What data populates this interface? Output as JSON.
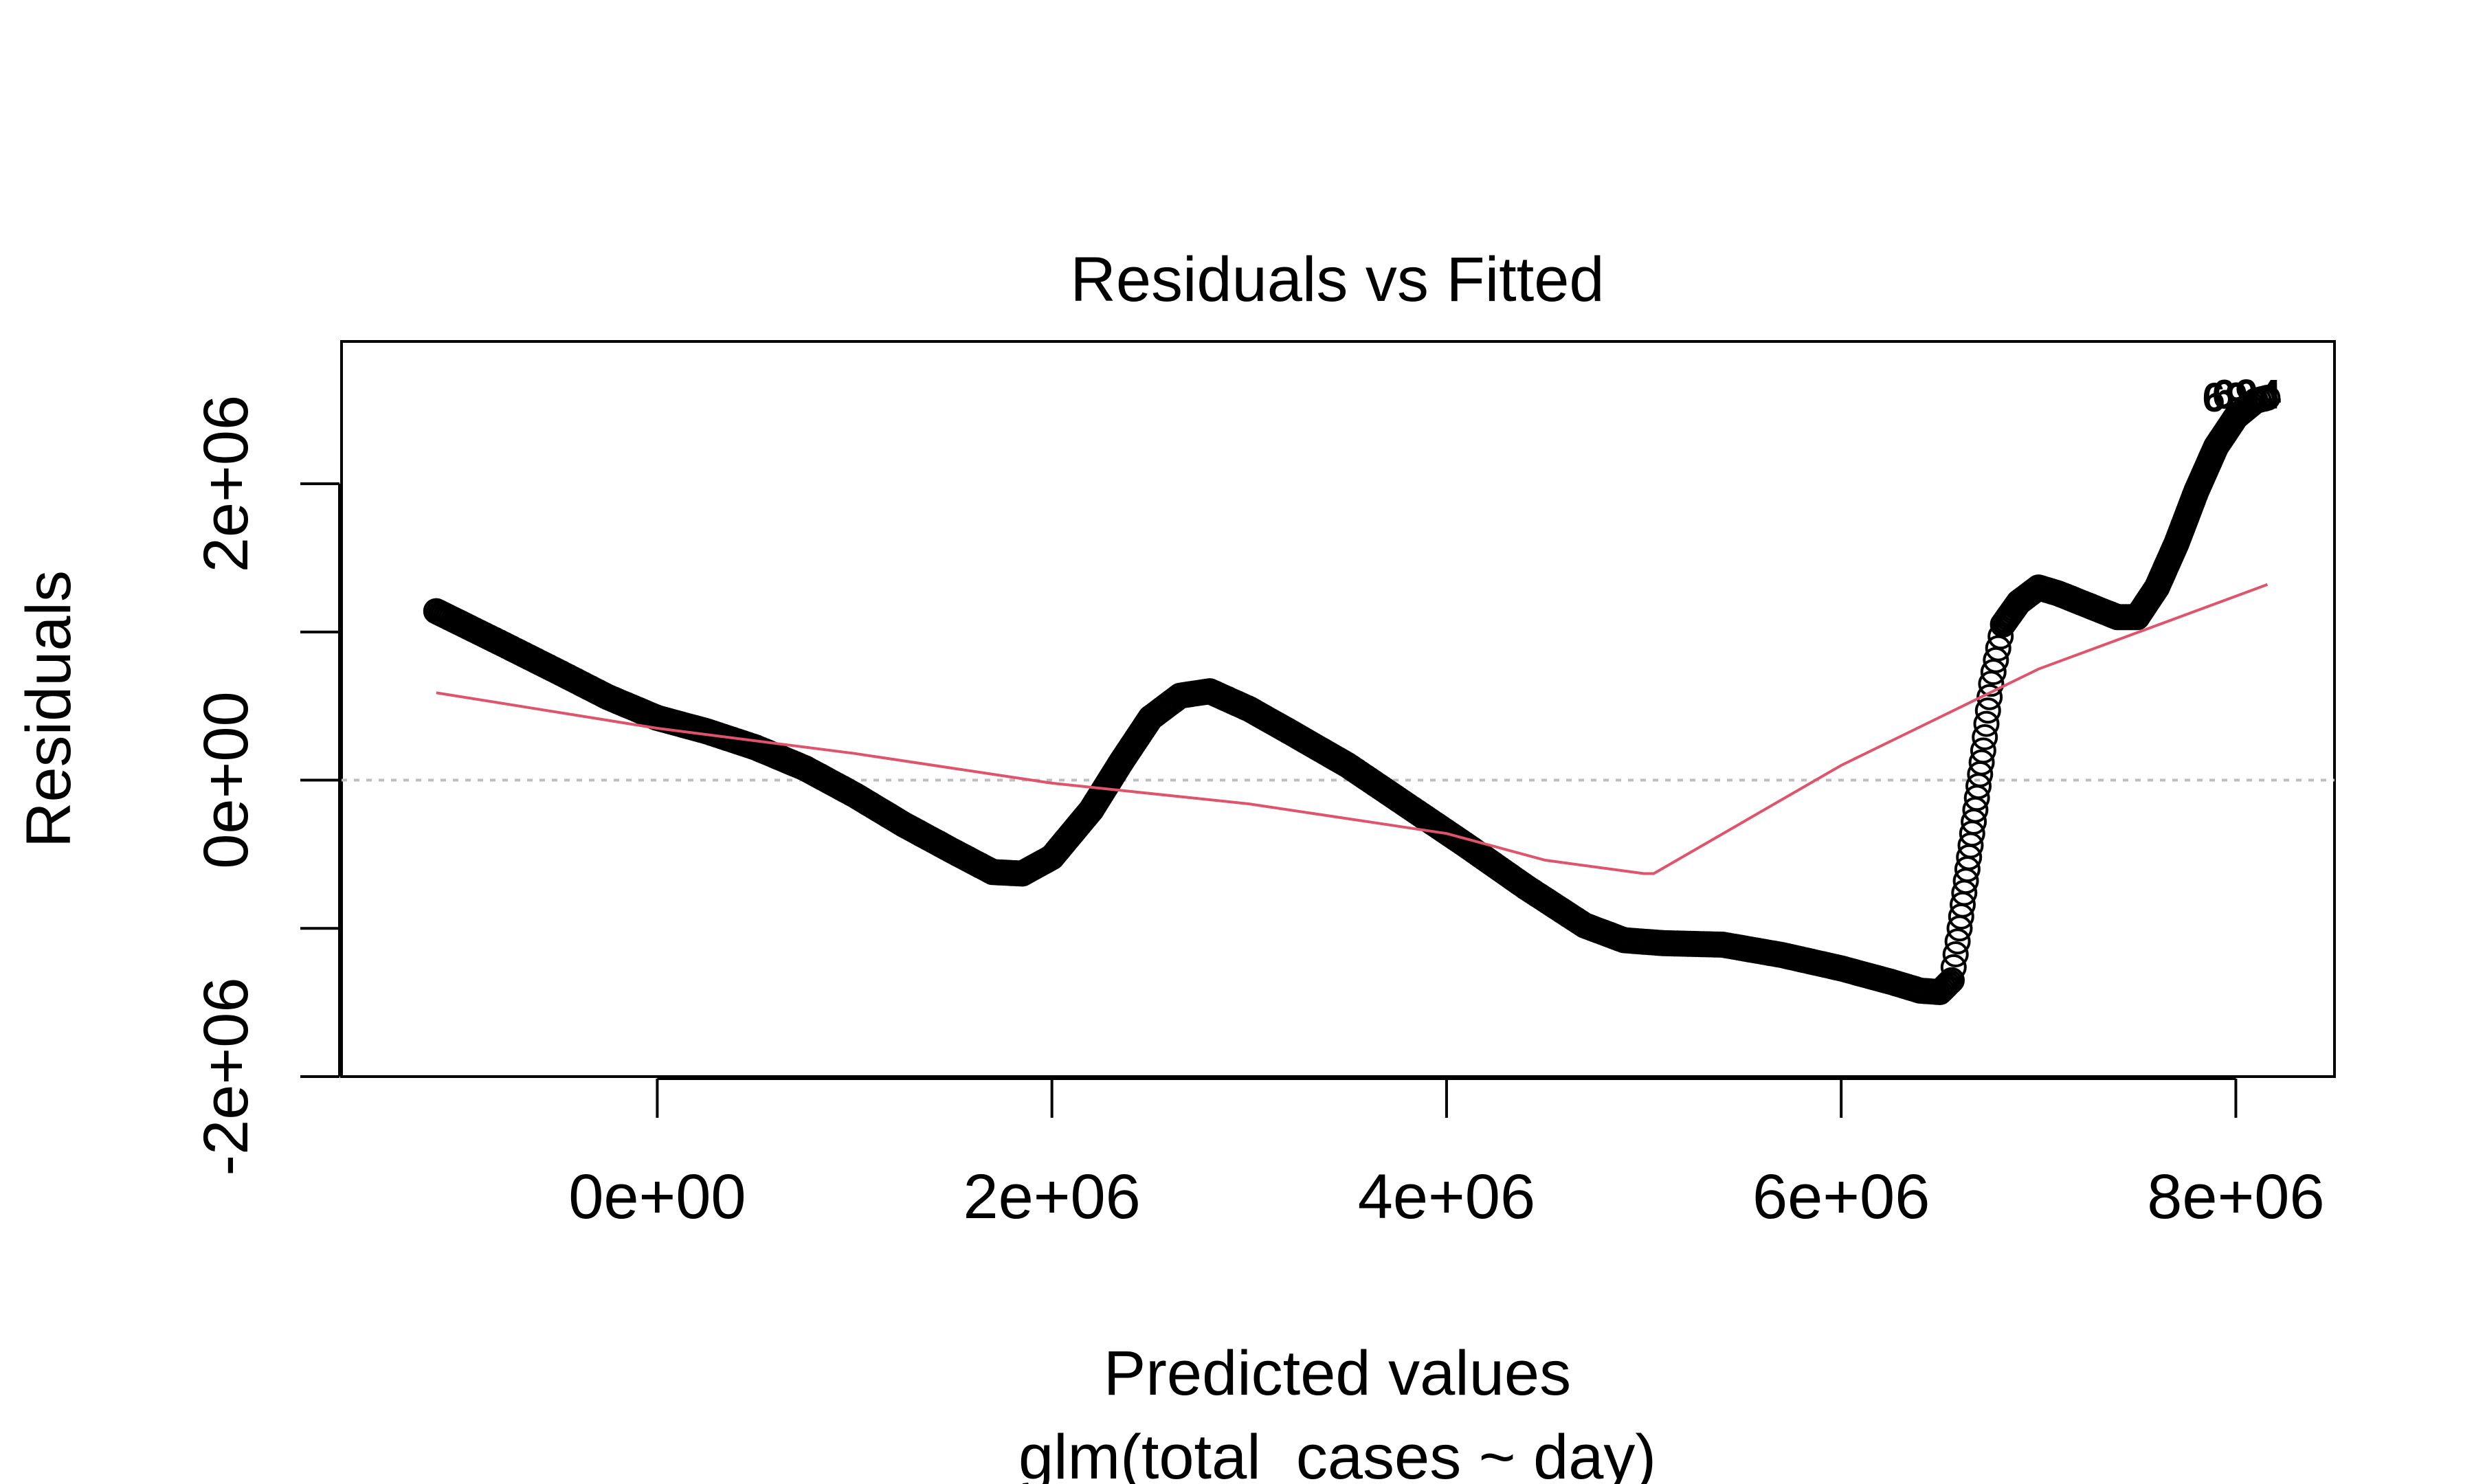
{
  "chart_data": {
    "type": "scatter",
    "title": "Residuals vs Fitted",
    "xlabel": "Predicted values",
    "subtitle": "glm(total_cases ~ day)",
    "ylabel": "Residuals",
    "xlim": [
      -1600000,
      8500000
    ],
    "ylim": [
      -2000000,
      2960000
    ],
    "x_ticks": [
      {
        "value": 0,
        "label": "0e+00"
      },
      {
        "value": 2000000,
        "label": "2e+06"
      },
      {
        "value": 4000000,
        "label": "4e+06"
      },
      {
        "value": 6000000,
        "label": "6e+06"
      },
      {
        "value": 8000000,
        "label": "8e+06"
      }
    ],
    "y_ticks": [
      {
        "value": -2000000,
        "label": "-2e+06",
        "labeled": true
      },
      {
        "value": -1000000,
        "label": "",
        "labeled": false
      },
      {
        "value": 0,
        "label": "0e+00",
        "labeled": true
      },
      {
        "value": 1000000,
        "label": "",
        "labeled": false
      },
      {
        "value": 2000000,
        "label": "2e+06",
        "labeled": true
      }
    ],
    "reference_line": {
      "y": 0,
      "style": "dotted",
      "color": "#bebebe"
    },
    "residuals_curve": {
      "marker": "open-circle",
      "color": "#000000",
      "anchors": [
        [
          -1120000,
          1140000
        ],
        [
          -800000,
          930000
        ],
        [
          -500000,
          730000
        ],
        [
          -250000,
          560000
        ],
        [
          0,
          420000
        ],
        [
          250000,
          330000
        ],
        [
          500000,
          220000
        ],
        [
          750000,
          80000
        ],
        [
          1000000,
          -100000
        ],
        [
          1250000,
          -300000
        ],
        [
          1500000,
          -480000
        ],
        [
          1700000,
          -620000
        ],
        [
          1850000,
          -630000
        ],
        [
          2000000,
          -520000
        ],
        [
          2200000,
          -200000
        ],
        [
          2350000,
          120000
        ],
        [
          2500000,
          420000
        ],
        [
          2650000,
          570000
        ],
        [
          2800000,
          600000
        ],
        [
          3000000,
          480000
        ],
        [
          3200000,
          330000
        ],
        [
          3500000,
          100000
        ],
        [
          3800000,
          -170000
        ],
        [
          4100000,
          -440000
        ],
        [
          4400000,
          -720000
        ],
        [
          4700000,
          -980000
        ],
        [
          4900000,
          -1080000
        ],
        [
          5100000,
          -1100000
        ],
        [
          5400000,
          -1110000
        ],
        [
          5700000,
          -1180000
        ],
        [
          6000000,
          -1270000
        ],
        [
          6250000,
          -1360000
        ],
        [
          6400000,
          -1420000
        ],
        [
          6500000,
          -1430000
        ],
        [
          6560000,
          -1350000
        ],
        [
          6600000,
          -1000000
        ],
        [
          6640000,
          -600000
        ],
        [
          6680000,
          -200000
        ],
        [
          6720000,
          200000
        ],
        [
          6760000,
          650000
        ],
        [
          6820000,
          1050000
        ],
        [
          6900000,
          1200000
        ],
        [
          7000000,
          1300000
        ],
        [
          7100000,
          1260000
        ],
        [
          7250000,
          1180000
        ],
        [
          7400000,
          1100000
        ],
        [
          7500000,
          1100000
        ],
        [
          7600000,
          1300000
        ],
        [
          7700000,
          1600000
        ],
        [
          7800000,
          1950000
        ],
        [
          7900000,
          2250000
        ],
        [
          8000000,
          2450000
        ],
        [
          8100000,
          2560000
        ],
        [
          8160000,
          2580000
        ]
      ]
    },
    "smooth_curve": {
      "color": "#df536b",
      "points": [
        [
          -1120000,
          590000
        ],
        [
          0,
          350000
        ],
        [
          1000000,
          180000
        ],
        [
          2000000,
          -20000
        ],
        [
          3000000,
          -160000
        ],
        [
          4000000,
          -360000
        ],
        [
          4500000,
          -540000
        ],
        [
          5000000,
          -630000
        ],
        [
          5050000,
          -630000
        ],
        [
          6000000,
          100000
        ],
        [
          7000000,
          750000
        ],
        [
          8160000,
          1320000
        ]
      ]
    },
    "point_labels": [
      {
        "text": "69",
        "x": 7830000,
        "y": 2580000
      },
      {
        "text": "694",
        "x": 7880000,
        "y": 2600000
      }
    ]
  }
}
